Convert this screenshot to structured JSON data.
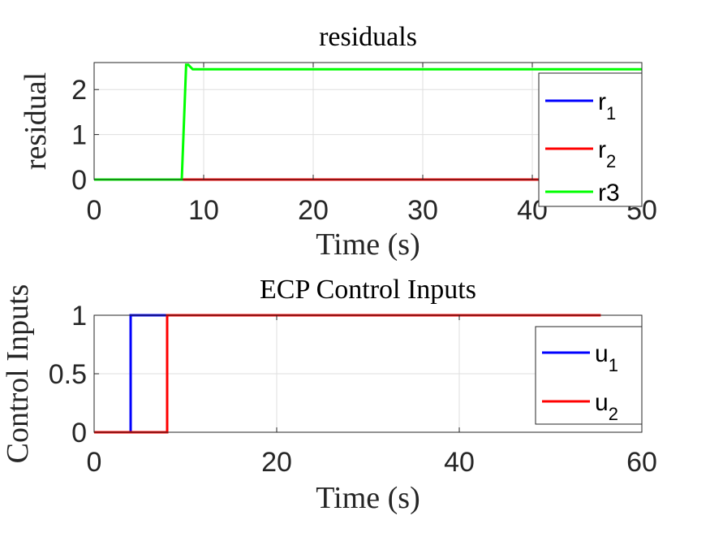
{
  "chart_data": [
    {
      "type": "line",
      "title": "residuals",
      "xlabel": "Time (s)",
      "ylabel": "residual",
      "xlim": [
        0,
        50
      ],
      "ylim": [
        0,
        2.6
      ],
      "xticks": [
        0,
        10,
        20,
        30,
        40,
        50
      ],
      "yticks": [
        0,
        1,
        2
      ],
      "xtick_labels": [
        "0",
        "10",
        "20",
        "30",
        "40",
        "50"
      ],
      "ytick_labels": [
        "0",
        "1",
        "2"
      ],
      "grid": true,
      "legend_position": "top-right",
      "series": [
        {
          "name": "r",
          "subscript": "1",
          "color": "#0000ff",
          "x": [
            0,
            50
          ],
          "y": [
            0,
            0
          ]
        },
        {
          "name": "r",
          "subscript": "2",
          "color": "#ff0000",
          "x": [
            0,
            50
          ],
          "y": [
            0,
            0
          ]
        },
        {
          "name": "r3",
          "subscript": "",
          "color": "#00ff00",
          "x": [
            0,
            8,
            8.4,
            8.6,
            9,
            50
          ],
          "y": [
            0,
            0,
            2.55,
            2.55,
            2.45,
            2.45
          ]
        }
      ]
    },
    {
      "type": "line",
      "title": "ECP Control Inputs",
      "xlabel": "Time (s)",
      "ylabel": "Control Inputs",
      "xlim": [
        0,
        60
      ],
      "ylim": [
        0,
        1
      ],
      "xticks": [
        0,
        20,
        40,
        60
      ],
      "yticks": [
        0,
        0.5,
        1
      ],
      "xtick_labels": [
        "0",
        "20",
        "40",
        "60"
      ],
      "ytick_labels": [
        "0",
        "0.5",
        "1"
      ],
      "grid": true,
      "legend_position": "top-right",
      "series": [
        {
          "name": "u",
          "subscript": "1",
          "color": "#0000ff",
          "x": [
            0,
            4,
            4,
            8
          ],
          "y": [
            0,
            0,
            1,
            1
          ]
        },
        {
          "name": "u",
          "subscript": "2",
          "color": "#ff0000",
          "x": [
            0,
            8,
            8,
            55.5
          ],
          "y": [
            0,
            0,
            1,
            1
          ]
        }
      ]
    }
  ]
}
